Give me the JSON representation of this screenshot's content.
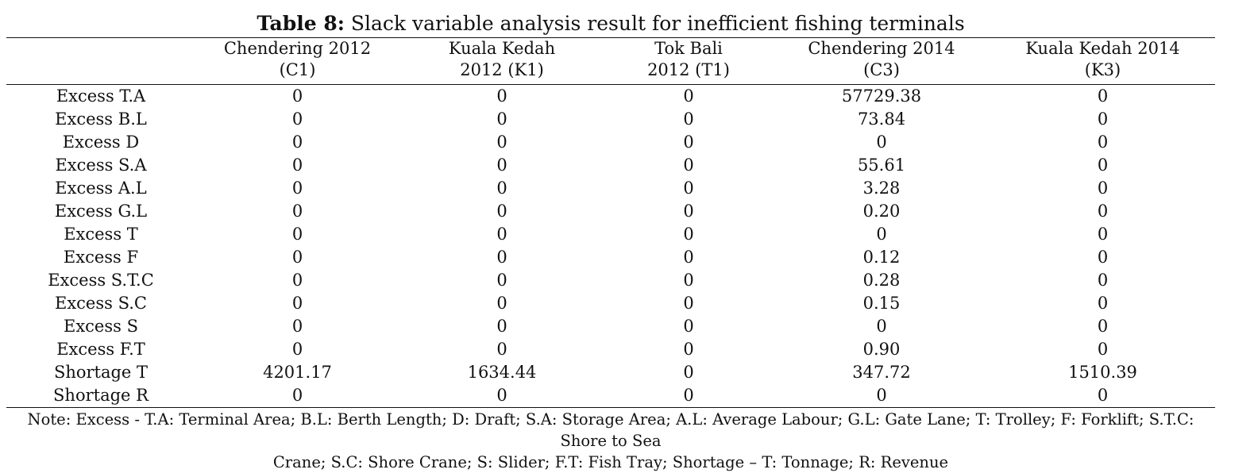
{
  "caption": {
    "label": "Table 8:",
    "text": " Slack variable analysis result for inefficient fishing terminals"
  },
  "header": [
    {
      "line1": "",
      "line2": ""
    },
    {
      "line1": "Chendering 2012",
      "line2": "(C1)"
    },
    {
      "line1": "Kuala Kedah",
      "line2": "2012 (K1)"
    },
    {
      "line1": "Tok Bali",
      "line2": "2012 (T1)"
    },
    {
      "line1": "Chendering 2014",
      "line2": "(C3)"
    },
    {
      "line1": "Kuala Kedah 2014",
      "line2": "(K3)"
    }
  ],
  "rows": [
    [
      "Excess T.A",
      "0",
      "0",
      "0",
      "57729.38",
      "0"
    ],
    [
      "Excess B.L",
      "0",
      "0",
      "0",
      "73.84",
      "0"
    ],
    [
      "Excess D",
      "0",
      "0",
      "0",
      "0",
      "0"
    ],
    [
      "Excess S.A",
      "0",
      "0",
      "0",
      "55.61",
      "0"
    ],
    [
      "Excess A.L",
      "0",
      "0",
      "0",
      "3.28",
      "0"
    ],
    [
      "Excess G.L",
      "0",
      "0",
      "0",
      "0.20",
      "0"
    ],
    [
      "Excess T",
      "0",
      "0",
      "0",
      "0",
      "0"
    ],
    [
      "Excess F",
      "0",
      "0",
      "0",
      "0.12",
      "0"
    ],
    [
      "Excess S.T.C",
      "0",
      "0",
      "0",
      "0.28",
      "0"
    ],
    [
      "Excess S.C",
      "0",
      "0",
      "0",
      "0.15",
      "0"
    ],
    [
      "Excess S",
      "0",
      "0",
      "0",
      "0",
      "0"
    ],
    [
      "Excess F.T",
      "0",
      "0",
      "0",
      "0.90",
      "0"
    ],
    [
      "Shortage T",
      "4201.17",
      "1634.44",
      "0",
      "347.72",
      "1510.39"
    ],
    [
      "Shortage R",
      "0",
      "0",
      "0",
      "0",
      "0"
    ]
  ],
  "note": {
    "line1": "Note: Excess - T.A: Terminal Area; B.L: Berth Length; D: Draft; S.A: Storage Area; A.L: Average Labour; G.L: Gate Lane; T: Trolley; F: Forklift; S.T.C: Shore to Sea",
    "line2": "Crane; S.C: Shore Crane; S: Slider; F.T: Fish Tray; Shortage – T: Tonnage; R: Revenue"
  }
}
